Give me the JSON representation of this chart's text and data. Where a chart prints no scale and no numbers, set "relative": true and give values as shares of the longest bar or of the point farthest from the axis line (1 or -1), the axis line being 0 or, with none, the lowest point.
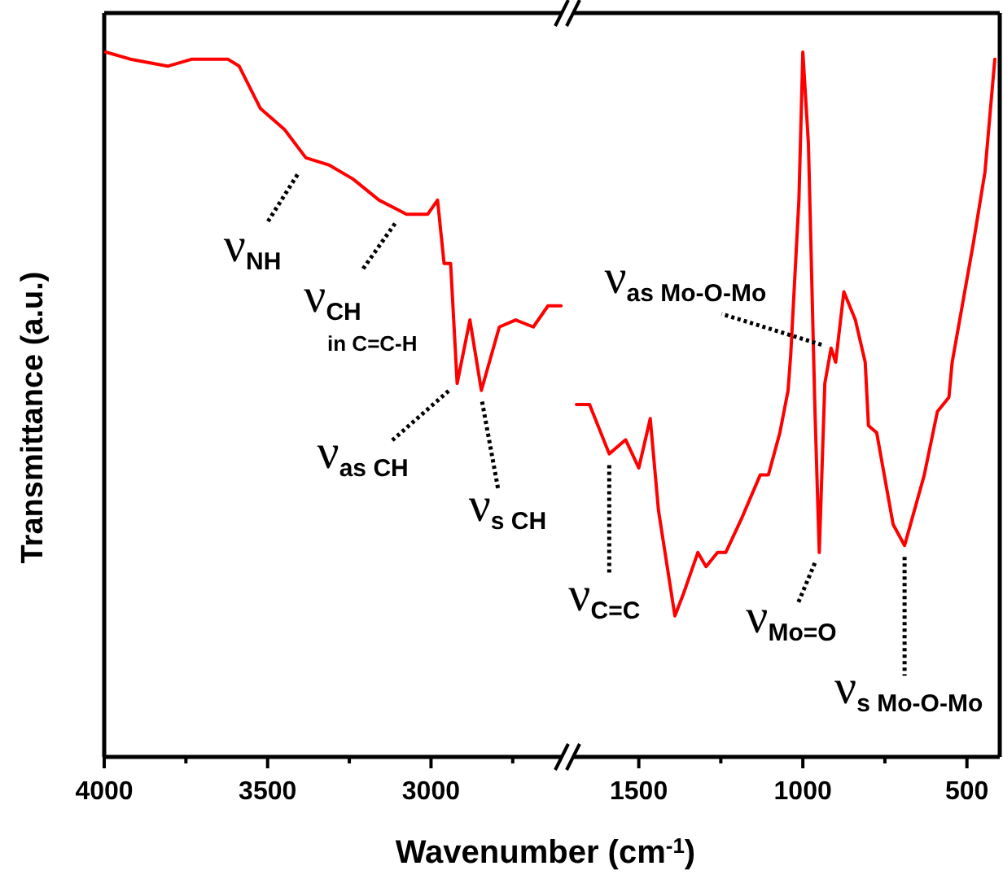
{
  "chart_data": [
    {
      "type": "line",
      "relative": true,
      "ylabel": "Transmittance (a.u.)",
      "xlabel": "Wavenumber (cm$^{-1}$)",
      "xlim": [
        4000,
        2600
      ],
      "xticks": [
        4000,
        3500,
        3000,
        {
          "value": 3750,
          "label": null
        },
        {
          "value": 3250,
          "label": null
        },
        {
          "value": 2750,
          "label": null
        }
      ],
      "tick_labels": "x",
      "x": [
        3995,
        3920,
        3806,
        3731,
        3622,
        3587,
        3522,
        3448,
        3383,
        3313,
        3239,
        3159,
        3075,
        3010,
        2980,
        2960,
        2940,
        2920,
        2881,
        2846,
        2791,
        2741,
        2687,
        2642,
        2602
      ],
      "series": [
        {
          "color": "#ff0000",
          "values": [
            1.0,
            0.99,
            0.98,
            0.99,
            0.99,
            0.98,
            0.92,
            0.89,
            0.85,
            0.84,
            0.82,
            0.79,
            0.77,
            0.77,
            0.79,
            0.7,
            0.7,
            0.53,
            0.62,
            0.52,
            0.61,
            0.62,
            0.61,
            0.64,
            0.64
          ]
        }
      ],
      "annotations": [
        {
          "text": "ν$_{NH}$",
          "x": 3390,
          "y": 0.84
        },
        {
          "text": "ν$_{CH}$\nin C=C-H",
          "x": 3090,
          "y": 0.77
        },
        {
          "text": "ν$_{as CH}$",
          "x": 2920,
          "y": 0.53
        },
        {
          "text": "ν$_{s CH}$",
          "x": 2850,
          "y": 0.52
        }
      ]
    },
    {
      "type": "line",
      "relative": true,
      "xlim": [
        1700,
        400
      ],
      "xticks": [
        1500,
        1000,
        500,
        {
          "value": 1250,
          "label": null
        },
        {
          "value": 750,
          "label": null
        }
      ],
      "tick_labels": "x",
      "x": [
        1690,
        1650,
        1590,
        1540,
        1500,
        1465,
        1440,
        1390,
        1365,
        1320,
        1295,
        1260,
        1235,
        1185,
        1130,
        1105,
        1070,
        1045,
        1037,
        1012,
        1000,
        983,
        963,
        950,
        933,
        914,
        900,
        875,
        840,
        810,
        800,
        775,
        725,
        690,
        630,
        590,
        555,
        545,
        480,
        445,
        415
      ],
      "series": [
        {
          "color": "#ff0000",
          "values": [
            0.5,
            0.5,
            0.43,
            0.45,
            0.41,
            0.48,
            0.35,
            0.2,
            0.23,
            0.29,
            0.27,
            0.29,
            0.29,
            0.34,
            0.4,
            0.4,
            0.46,
            0.52,
            0.57,
            0.79,
            1.0,
            0.87,
            0.49,
            0.29,
            0.53,
            0.58,
            0.56,
            0.66,
            0.62,
            0.56,
            0.47,
            0.46,
            0.33,
            0.3,
            0.4,
            0.49,
            0.51,
            0.56,
            0.73,
            0.83,
            0.99
          ]
        }
      ],
      "annotations": [
        {
          "text": "ν$_{as Mo-O-Mo}$",
          "x": 910,
          "y": 0.58
        },
        {
          "text": "ν$_{C=C}$",
          "x": 1590,
          "y": 0.43
        },
        {
          "text": "ν$_{Mo=O}$",
          "x": 950,
          "y": 0.29
        },
        {
          "text": "ν$_{s Mo-O-Mo}$",
          "x": 690,
          "y": 0.3
        }
      ]
    }
  ]
}
